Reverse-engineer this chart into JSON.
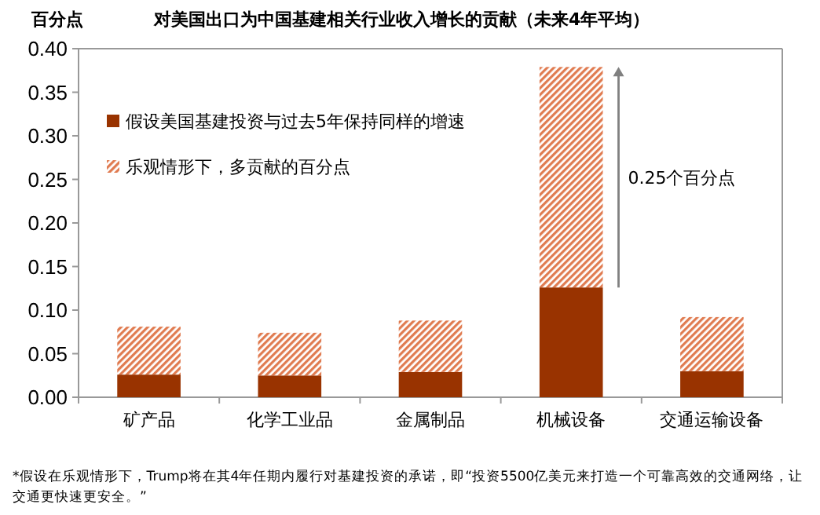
{
  "chart_data": {
    "type": "bar",
    "stacked": true,
    "title": "对美国出口为中国基建相关行业收入增长的贡献（未来4年平均）",
    "ylabel": "百分点",
    "categories": [
      "矿产品",
      "化学工业品",
      "金属制品",
      "机械设备",
      "交通运输设备"
    ],
    "series": [
      {
        "name": "假设美国基建投资与过去5年保持同样的增速",
        "color": "#993300",
        "values": [
          0.026,
          0.025,
          0.029,
          0.126,
          0.03
        ]
      },
      {
        "name": "乐观情形下，多贡献的百分点",
        "color": "#e07b50",
        "values": [
          0.055,
          0.049,
          0.059,
          0.253,
          0.062
        ]
      }
    ],
    "ylim": [
      0,
      0.4
    ],
    "yticks": [
      {
        "value": 0,
        "label": "0.00"
      },
      {
        "value": 0.05,
        "label": "0.05"
      },
      {
        "value": 0.1,
        "label": "0.10"
      },
      {
        "value": 0.15,
        "label": "0.15"
      },
      {
        "value": 0.2,
        "label": "0.20"
      },
      {
        "value": 0.25,
        "label": "0.25"
      },
      {
        "value": 0.3,
        "label": "0.30"
      },
      {
        "value": 0.35,
        "label": "0.35"
      },
      {
        "value": 0.4,
        "label": "0.40"
      }
    ],
    "grid": false,
    "legend": "top left",
    "annotations": [
      "0.25个百分点",
      "*假设在乐观情形下，Trump将在其4年任期内履行对基建投资的承诺，即“投资5500亿美元来打造一个可靠高效的交通网络，让交通更快速更安全。”"
    ]
  }
}
